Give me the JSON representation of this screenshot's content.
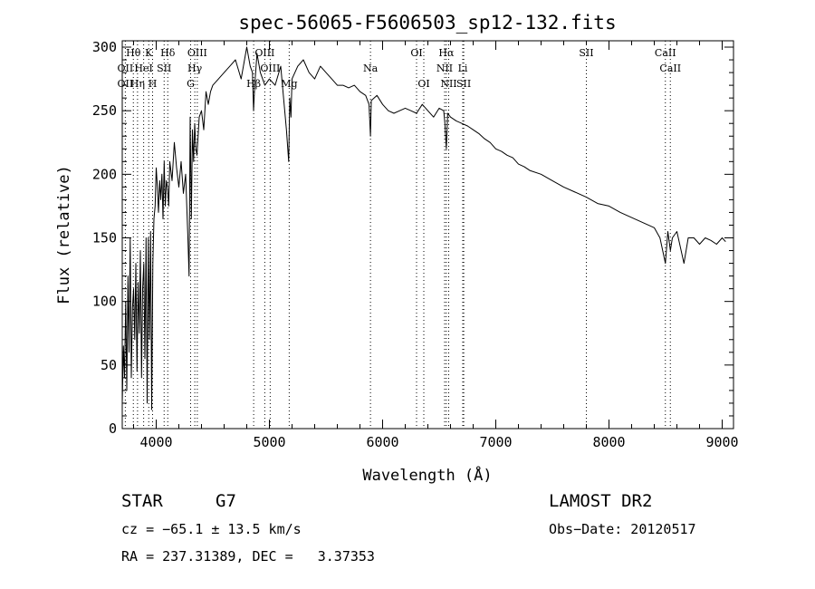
{
  "chart_data": {
    "type": "line",
    "title": "spec-56065-F5606503_sp12-132.fits",
    "xlabel": "Wavelength (Å)",
    "ylabel": "Flux (relative)",
    "xlim": [
      3700,
      9100
    ],
    "ylim": [
      0,
      305
    ],
    "x_ticks": [
      4000,
      5000,
      6000,
      7000,
      8000,
      9000
    ],
    "y_ticks": [
      0,
      50,
      100,
      150,
      200,
      250,
      300
    ],
    "grid": false,
    "spectral_lines": [
      {
        "label": "Hθ",
        "x": 3798,
        "row": 1
      },
      {
        "label": "K",
        "x": 3934,
        "row": 1
      },
      {
        "label": "Hδ",
        "x": 4102,
        "row": 1
      },
      {
        "label": "OIII",
        "x": 4363,
        "row": 1
      },
      {
        "label": "OIII",
        "x": 4959,
        "row": 1
      },
      {
        "label": "OI",
        "x": 6300,
        "row": 1
      },
      {
        "label": "Hα",
        "x": 6563,
        "row": 1
      },
      {
        "label": "SII",
        "x": 7800,
        "row": 1
      },
      {
        "label": "CaII",
        "x": 8498,
        "row": 1
      },
      {
        "label": "OII",
        "x": 3727,
        "row": 2
      },
      {
        "label": "HeI",
        "x": 3889,
        "row": 2
      },
      {
        "label": "SII",
        "x": 4070,
        "row": 2
      },
      {
        "label": "Hγ",
        "x": 4341,
        "row": 2
      },
      {
        "label": "OIII",
        "x": 5007,
        "row": 2
      },
      {
        "label": "Na",
        "x": 5893,
        "row": 2
      },
      {
        "label": "NII",
        "x": 6548,
        "row": 2
      },
      {
        "label": "Li",
        "x": 6708,
        "row": 2
      },
      {
        "label": "CaII",
        "x": 8542,
        "row": 2
      },
      {
        "label": "OII",
        "x": 3727,
        "row": 3
      },
      {
        "label": "Hη",
        "x": 3835,
        "row": 3
      },
      {
        "label": "H",
        "x": 3968,
        "row": 3
      },
      {
        "label": "G",
        "x": 4304,
        "row": 3
      },
      {
        "label": "Hβ",
        "x": 4861,
        "row": 3
      },
      {
        "label": "Mg",
        "x": 5175,
        "row": 3
      },
      {
        "label": "OI",
        "x": 6364,
        "row": 3
      },
      {
        "label": "NII",
        "x": 6584,
        "row": 3
      },
      {
        "label": "SII",
        "x": 6717,
        "row": 3
      }
    ],
    "series": [
      {
        "x": [
          3700,
          3710,
          3720,
          3730,
          3740,
          3750,
          3760,
          3770,
          3780,
          3790,
          3800,
          3810,
          3820,
          3830,
          3840,
          3850,
          3860,
          3870,
          3880,
          3890,
          3900,
          3910,
          3920,
          3930,
          3940,
          3950,
          3960,
          3970,
          3980,
          3990,
          4000,
          4010,
          4020,
          4030,
          4040,
          4050,
          4060,
          4070,
          4080,
          4090,
          4100,
          4110,
          4120,
          4140,
          4160,
          4180,
          4200,
          4220,
          4240,
          4260,
          4280,
          4290,
          4300,
          4310,
          4320,
          4330,
          4340,
          4350,
          4360,
          4380,
          4400,
          4420,
          4440,
          4460,
          4480,
          4500,
          4550,
          4600,
          4650,
          4700,
          4750,
          4800,
          4830,
          4850,
          4860,
          4870,
          4890,
          4920,
          4960,
          5000,
          5050,
          5100,
          5150,
          5170,
          5180,
          5190,
          5200,
          5250,
          5300,
          5350,
          5400,
          5450,
          5500,
          5550,
          5600,
          5650,
          5700,
          5750,
          5800,
          5850,
          5880,
          5893,
          5900,
          5950,
          6000,
          6050,
          6100,
          6150,
          6200,
          6250,
          6300,
          6350,
          6400,
          6450,
          6500,
          6540,
          6550,
          6563,
          6575,
          6600,
          6650,
          6700,
          6750,
          6800,
          6850,
          6900,
          6950,
          7000,
          7050,
          7100,
          7150,
          7200,
          7250,
          7300,
          7400,
          7500,
          7600,
          7700,
          7800,
          7900,
          8000,
          8100,
          8200,
          8300,
          8400,
          8450,
          8498,
          8520,
          8542,
          8560,
          8600,
          8662,
          8700,
          8750,
          8800,
          8850,
          8900,
          8950,
          9000,
          9030
        ],
        "y": [
          20,
          65,
          40,
          100,
          30,
          120,
          60,
          150,
          40,
          95,
          110,
          70,
          130,
          45,
          115,
          75,
          140,
          40,
          110,
          130,
          55,
          150,
          20,
          150,
          70,
          155,
          15,
          130,
          165,
          175,
          205,
          190,
          170,
          195,
          180,
          200,
          165,
          210,
          175,
          195,
          190,
          175,
          210,
          195,
          225,
          205,
          190,
          210,
          185,
          200,
          150,
          120,
          245,
          165,
          235,
          210,
          240,
          220,
          215,
          245,
          250,
          235,
          265,
          255,
          265,
          270,
          275,
          280,
          285,
          290,
          275,
          300,
          285,
          280,
          250,
          270,
          295,
          280,
          270,
          275,
          270,
          285,
          235,
          210,
          260,
          245,
          275,
          285,
          290,
          280,
          275,
          285,
          280,
          275,
          270,
          270,
          268,
          270,
          265,
          262,
          255,
          230,
          258,
          262,
          255,
          250,
          248,
          250,
          252,
          250,
          248,
          255,
          250,
          245,
          252,
          250,
          240,
          220,
          248,
          245,
          242,
          240,
          238,
          235,
          232,
          228,
          225,
          220,
          218,
          215,
          213,
          208,
          206,
          203,
          200,
          195,
          190,
          186,
          182,
          177,
          175,
          170,
          166,
          162,
          158,
          150,
          130,
          155,
          140,
          150,
          155,
          130,
          150,
          150,
          145,
          150,
          148,
          145,
          150,
          147
        ]
      }
    ]
  },
  "info": {
    "object_class": "STAR",
    "subclass": "G7",
    "survey": "LAMOST DR2",
    "redshift_line": "cz = −65.1 ± 13.5 km/s",
    "obs_date": "Obs−Date: 20120517",
    "coords": "RA = 237.31389, DEC =   3.37353"
  }
}
